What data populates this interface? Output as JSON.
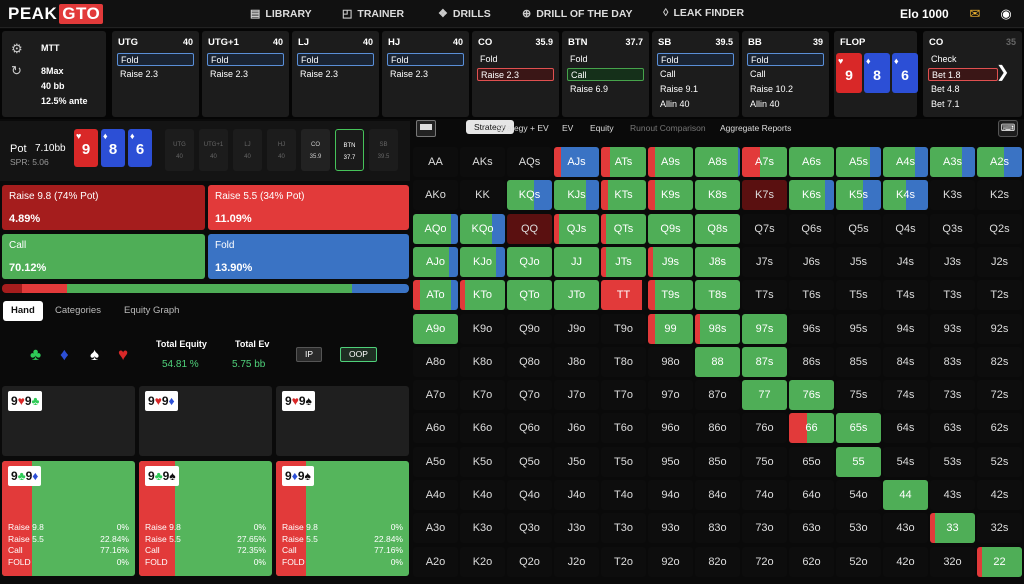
{
  "brand": {
    "left": "PEAK",
    "right": "GTO"
  },
  "nav": [
    {
      "icon": "book-icon",
      "glyph": "▤",
      "label": "LIBRARY"
    },
    {
      "icon": "trainer-icon",
      "glyph": "◰",
      "label": "TRAINER"
    },
    {
      "icon": "drills-icon",
      "glyph": "❖",
      "label": "DRILLS"
    },
    {
      "icon": "drill-of-the-day-icon",
      "glyph": "⊕",
      "label": "DRILL OF THE DAY"
    },
    {
      "icon": "leak-finder-icon",
      "glyph": "◊",
      "label": "LEAK FINDER"
    }
  ],
  "elo": "Elo 1000",
  "settings": {
    "game": "MTT",
    "format": "8Max",
    "stack": "40 bb",
    "ante": "12.5% ante"
  },
  "positions": [
    {
      "name": "UTG",
      "stack": "40",
      "actions": [
        {
          "label": "Fold",
          "style": "sel"
        },
        {
          "label": "Raise 2.3",
          "style": ""
        }
      ]
    },
    {
      "name": "UTG+1",
      "stack": "40",
      "actions": [
        {
          "label": "Fold",
          "style": "sel"
        },
        {
          "label": "Raise 2.3",
          "style": ""
        }
      ]
    },
    {
      "name": "LJ",
      "stack": "40",
      "actions": [
        {
          "label": "Fold",
          "style": "sel"
        },
        {
          "label": "Raise 2.3",
          "style": ""
        }
      ]
    },
    {
      "name": "HJ",
      "stack": "40",
      "actions": [
        {
          "label": "Fold",
          "style": "sel"
        },
        {
          "label": "Raise 2.3",
          "style": ""
        }
      ]
    },
    {
      "name": "CO",
      "stack": "35.9",
      "actions": [
        {
          "label": "Fold",
          "style": ""
        },
        {
          "label": "Raise 2.3",
          "style": "selred"
        }
      ]
    },
    {
      "name": "BTN",
      "stack": "37.7",
      "actions": [
        {
          "label": "Fold",
          "style": ""
        },
        {
          "label": "Call",
          "style": "selgreen"
        },
        {
          "label": "Raise 6.9",
          "style": ""
        }
      ]
    },
    {
      "name": "SB",
      "stack": "39.5",
      "actions": [
        {
          "label": "Fold",
          "style": "sel"
        },
        {
          "label": "Call",
          "style": ""
        },
        {
          "label": "Raise 9.1",
          "style": ""
        },
        {
          "label": "Allin 40",
          "style": ""
        }
      ]
    },
    {
      "name": "BB",
      "stack": "39",
      "actions": [
        {
          "label": "Fold",
          "style": "sel"
        },
        {
          "label": "Call",
          "style": ""
        },
        {
          "label": "Raise 10.2",
          "style": ""
        },
        {
          "label": "Allin 40",
          "style": ""
        }
      ]
    }
  ],
  "flop": {
    "label": "FLOP",
    "cards": [
      {
        "rank": "9",
        "suit": "♥",
        "color": "#d92828"
      },
      {
        "rank": "8",
        "suit": "♦",
        "color": "#2c4fd6"
      },
      {
        "rank": "6",
        "suit": "♦",
        "color": "#2c4fd6"
      }
    ]
  },
  "co_node": {
    "name": "CO",
    "stack": "35",
    "actions": [
      {
        "label": "Check",
        "style": ""
      },
      {
        "label": "Bet 1.8",
        "style": "selred"
      },
      {
        "label": "Bet 4.8",
        "style": ""
      },
      {
        "label": "Bet 7.1",
        "style": ""
      }
    ]
  },
  "pot": {
    "label": "Pot",
    "value": "7.10bb",
    "spr": "SPR: 5.06"
  },
  "seats": [
    {
      "name": "UTG",
      "stack": "40",
      "state": ""
    },
    {
      "name": "UTG+1",
      "stack": "40",
      "state": ""
    },
    {
      "name": "LJ",
      "stack": "40",
      "state": ""
    },
    {
      "name": "HJ",
      "stack": "40",
      "state": ""
    },
    {
      "name": "CO",
      "stack": "35.9",
      "state": "act1"
    },
    {
      "name": "BTN",
      "stack": "37.7",
      "state": "hero"
    },
    {
      "name": "SB",
      "stack": "39.5",
      "state": ""
    }
  ],
  "strategy_actions": [
    {
      "label": "Raise 9.8 (74% Pot)",
      "pct": "4.89%",
      "color": "#a51d1d"
    },
    {
      "label": "Raise 5.5 (34% Pot)",
      "pct": "11.09%",
      "color": "#e23a3a"
    },
    {
      "label": "Call",
      "pct": "70.12%",
      "color": "#4fae57"
    },
    {
      "label": "Fold",
      "pct": "13.90%",
      "color": "#3a73c4"
    }
  ],
  "freq": [
    {
      "v": 4.89,
      "c": "#a51d1d"
    },
    {
      "v": 11.09,
      "c": "#e23a3a"
    },
    {
      "v": 70.12,
      "c": "#4fae57"
    },
    {
      "v": 13.9,
      "c": "#3a73c4"
    }
  ],
  "left_tabs": [
    "Hand",
    "Categories",
    "Equity Graph"
  ],
  "suits": [
    {
      "glyph": "♣",
      "color": "#2ecc57"
    },
    {
      "glyph": "♦",
      "color": "#2c4fd6"
    },
    {
      "glyph": "♠",
      "color": "#ffffff"
    },
    {
      "glyph": "♥",
      "color": "#d92828"
    }
  ],
  "equity": {
    "total_equity_label": "Total Equity",
    "total_equity": "54.81 %",
    "total_ev_label": "Total Ev",
    "total_ev": "5.75 bb",
    "ip": "IP",
    "oop": "OOP"
  },
  "combos_top": [
    {
      "card1": "9",
      "s1": "♥",
      "c1": "#d92828",
      "card2": "9",
      "s2": "♣",
      "c2": "#2ecc57"
    },
    {
      "card1": "9",
      "s1": "♥",
      "c1": "#d92828",
      "card2": "9",
      "s2": "♦",
      "c2": "#2c4fd6"
    },
    {
      "card1": "9",
      "s1": "♥",
      "c1": "#d92828",
      "card2": "9",
      "s2": "♠",
      "c2": "#111111"
    }
  ],
  "combos_bottom": [
    {
      "card1": "9",
      "s1": "♣",
      "c1": "#2ecc57",
      "card2": "9",
      "s2": "♦",
      "c2": "#2c4fd6",
      "rows": [
        [
          "Raise 9.8",
          "0%"
        ],
        [
          "Raise 5.5",
          "22.84%"
        ],
        [
          "Call",
          "77.16%"
        ],
        [
          "FOLD",
          "0%"
        ]
      ],
      "red": 30
    },
    {
      "card1": "9",
      "s1": "♣",
      "c1": "#2ecc57",
      "card2": "9",
      "s2": "♠",
      "c2": "#111111",
      "rows": [
        [
          "Raise 9.8",
          "0%"
        ],
        [
          "Raise 5.5",
          "27.65%"
        ],
        [
          "Call",
          "72.35%"
        ],
        [
          "FOLD",
          "0%"
        ]
      ],
      "red": 36
    },
    {
      "card1": "9",
      "s1": "♦",
      "c1": "#2c4fd6",
      "card2": "9",
      "s2": "♠",
      "c2": "#111111",
      "rows": [
        [
          "Raise 9.8",
          "0%"
        ],
        [
          "Raise 5.5",
          "22.84%"
        ],
        [
          "Call",
          "77.16%"
        ],
        [
          "FOLD",
          "0%"
        ]
      ],
      "red": 30
    }
  ],
  "right_tabs": [
    {
      "label": "Strategy",
      "state": "on"
    },
    {
      "label": "Strategy + EV",
      "state": ""
    },
    {
      "label": "EV",
      "state": ""
    },
    {
      "label": "Equity",
      "state": ""
    },
    {
      "label": "Runout Comparison",
      "state": "dim"
    },
    {
      "label": "Aggregate Reports",
      "state": ""
    }
  ],
  "ranks": [
    "A",
    "K",
    "Q",
    "J",
    "T",
    "9",
    "8",
    "7",
    "6",
    "5",
    "4",
    "3",
    "2"
  ],
  "matrix_colors": {
    "raise_big": "#a51d1d",
    "raise_small": "#e23a3a",
    "call": "#4fae57",
    "fold": "#3a73c4",
    "empty": "#0d0d0d"
  },
  "matrix": {
    "0-3": [
      0,
      0.15,
      0,
      0.85
    ],
    "0-4": [
      0,
      0.2,
      0.8,
      0
    ],
    "0-5": [
      0,
      0.15,
      0.85,
      0
    ],
    "0-6": [
      0,
      0,
      0.95,
      0.05
    ],
    "0-7": [
      0,
      0.4,
      0.6,
      0
    ],
    "0-8": [
      0,
      0,
      1,
      0
    ],
    "0-9": [
      0,
      0,
      0.75,
      0.25
    ],
    "0-10": [
      0,
      0,
      0.7,
      0.3
    ],
    "0-11": [
      0,
      0,
      0.7,
      0.3
    ],
    "0-12": [
      0,
      0,
      0.6,
      0.4
    ],
    "1-2": [
      0,
      0,
      0.6,
      0.4
    ],
    "1-3": [
      0,
      0,
      0.7,
      0.3
    ],
    "1-4": [
      0,
      0.15,
      0.85,
      0
    ],
    "1-5": [
      0,
      0.15,
      0.85,
      0
    ],
    "1-6": [
      0,
      0,
      1,
      0
    ],
    "1-7": [
      0,
      0,
      0,
      0
    ],
    "1-8": [
      0,
      0,
      0.8,
      0.2
    ],
    "1-9": [
      0,
      0,
      0.6,
      0.4
    ],
    "1-10": [
      0,
      0,
      0.5,
      0.5
    ],
    "2-0": [
      0,
      0,
      0.85,
      0.15
    ],
    "2-1": [
      0,
      0,
      0.7,
      0.3
    ],
    "2-2": [
      0,
      0,
      0,
      0
    ],
    "2-3": [
      0,
      0.1,
      0.9,
      0
    ],
    "2-4": [
      0,
      0.1,
      0.9,
      0
    ],
    "2-5": [
      0,
      0,
      1,
      0
    ],
    "2-6": [
      0,
      0,
      1,
      0
    ],
    "3-0": [
      0,
      0,
      0.8,
      0.2
    ],
    "3-1": [
      0,
      0,
      0.8,
      0.2
    ],
    "3-2": [
      0,
      0,
      1,
      0
    ],
    "3-3": [
      0,
      0,
      1,
      0
    ],
    "3-4": [
      0,
      0.1,
      0.9,
      0
    ],
    "3-5": [
      0,
      0.1,
      0.9,
      0
    ],
    "3-6": [
      0,
      0,
      1,
      0
    ],
    "4-0": [
      0,
      0.15,
      0.7,
      0.15
    ],
    "4-1": [
      0,
      0.1,
      0.9,
      0
    ],
    "4-2": [
      0,
      0,
      1,
      0
    ],
    "4-3": [
      0,
      0,
      1,
      0
    ],
    "4-4": [
      0,
      0.9,
      0,
      0
    ],
    "4-5": [
      0,
      0.15,
      0.85,
      0
    ],
    "4-6": [
      0,
      0,
      1,
      0
    ],
    "5-0": [
      0,
      0,
      1,
      0
    ],
    "5-5": [
      0,
      0.15,
      0.85,
      0
    ],
    "5-6": [
      0,
      0.1,
      0.9,
      0
    ],
    "5-7": [
      0,
      0,
      1,
      0
    ],
    "6-6": [
      0,
      0,
      1,
      0
    ],
    "6-7": [
      0,
      0,
      1,
      0
    ],
    "7-7": [
      0,
      0,
      1,
      0
    ],
    "7-8": [
      0,
      0,
      1,
      0
    ],
    "8-8": [
      0,
      0.4,
      0.6,
      0
    ],
    "8-9": [
      0,
      0,
      1,
      0
    ],
    "9-9": [
      0,
      0,
      1,
      0
    ],
    "10-10": [
      0,
      0,
      1,
      0
    ],
    "11-11": [
      0,
      0.1,
      0.9,
      0
    ],
    "12-12": [
      0,
      0.1,
      0.9,
      0
    ]
  }
}
